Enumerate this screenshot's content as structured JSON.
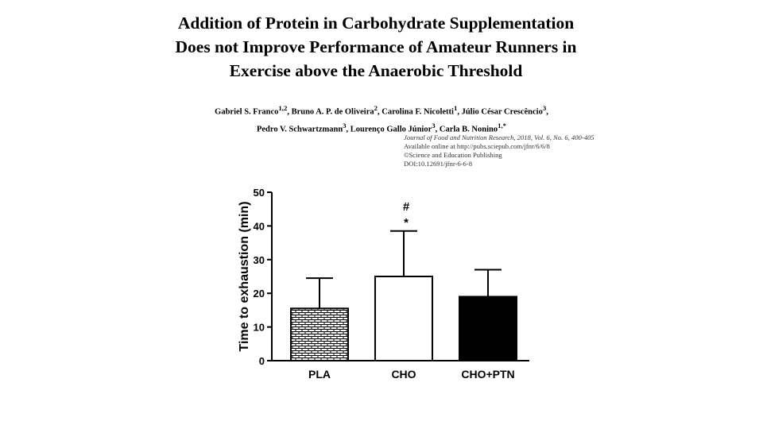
{
  "paper": {
    "title_lines": [
      "Addition of Protein in Carbohydrate Supplementation",
      "Does not Improve Performance of Amateur Runners in",
      "Exercise above the Anaerobic Threshold"
    ],
    "authors_line1": "Gabriel S. Franco",
    "authors_line1_sup": "1,2",
    "authors_line1_rest": ", Bruno A. P. de Oliveira",
    "authors_line1_sup2": "2",
    "authors_line1_rest2": ", Carolina F. Nicoletti",
    "authors_line1_sup3": "1",
    "authors_line1_rest3": ", Júlio César Crescêncio",
    "authors_line1_sup4": "3",
    "authors_line1_rest4": ",",
    "authors_line2": "Pedro V. Schwartzmann",
    "authors_line2_sup": "3",
    "authors_line2_rest": ", Lourenço Gallo Júnior",
    "authors_line2_sup2": "3",
    "authors_line2_rest2": ", Carla B. Nonino",
    "authors_line2_sup3": "1,*",
    "journal": "Journal of Food and Nutrition Research, 2018, Vol. 6, No. 6, 400-405",
    "available": "Available online at http://pubs.sciepub.com/jfnr/6/6/8",
    "publisher": "©Science and Education Publishing",
    "doi": "DOI:10.12691/jfnr-6-6-8"
  },
  "chart_data": {
    "type": "bar",
    "title": "",
    "xlabel": "",
    "ylabel": "Time to exhaustion (min)",
    "ylim": [
      0,
      50
    ],
    "yticks": [
      "0",
      "10",
      "20",
      "30",
      "40",
      "50"
    ],
    "categories": [
      "PLA",
      "CHO",
      "CHO+PTN"
    ],
    "values": [
      15.5,
      25,
      19
    ],
    "errors": [
      9,
      13.5,
      8
    ],
    "fills": [
      "brick",
      "white",
      "black"
    ],
    "annotations": [
      {
        "category": "CHO",
        "lines": [
          "#",
          "*"
        ]
      }
    ]
  },
  "colors": {
    "ink": "#000000",
    "background": "#ffffff"
  }
}
